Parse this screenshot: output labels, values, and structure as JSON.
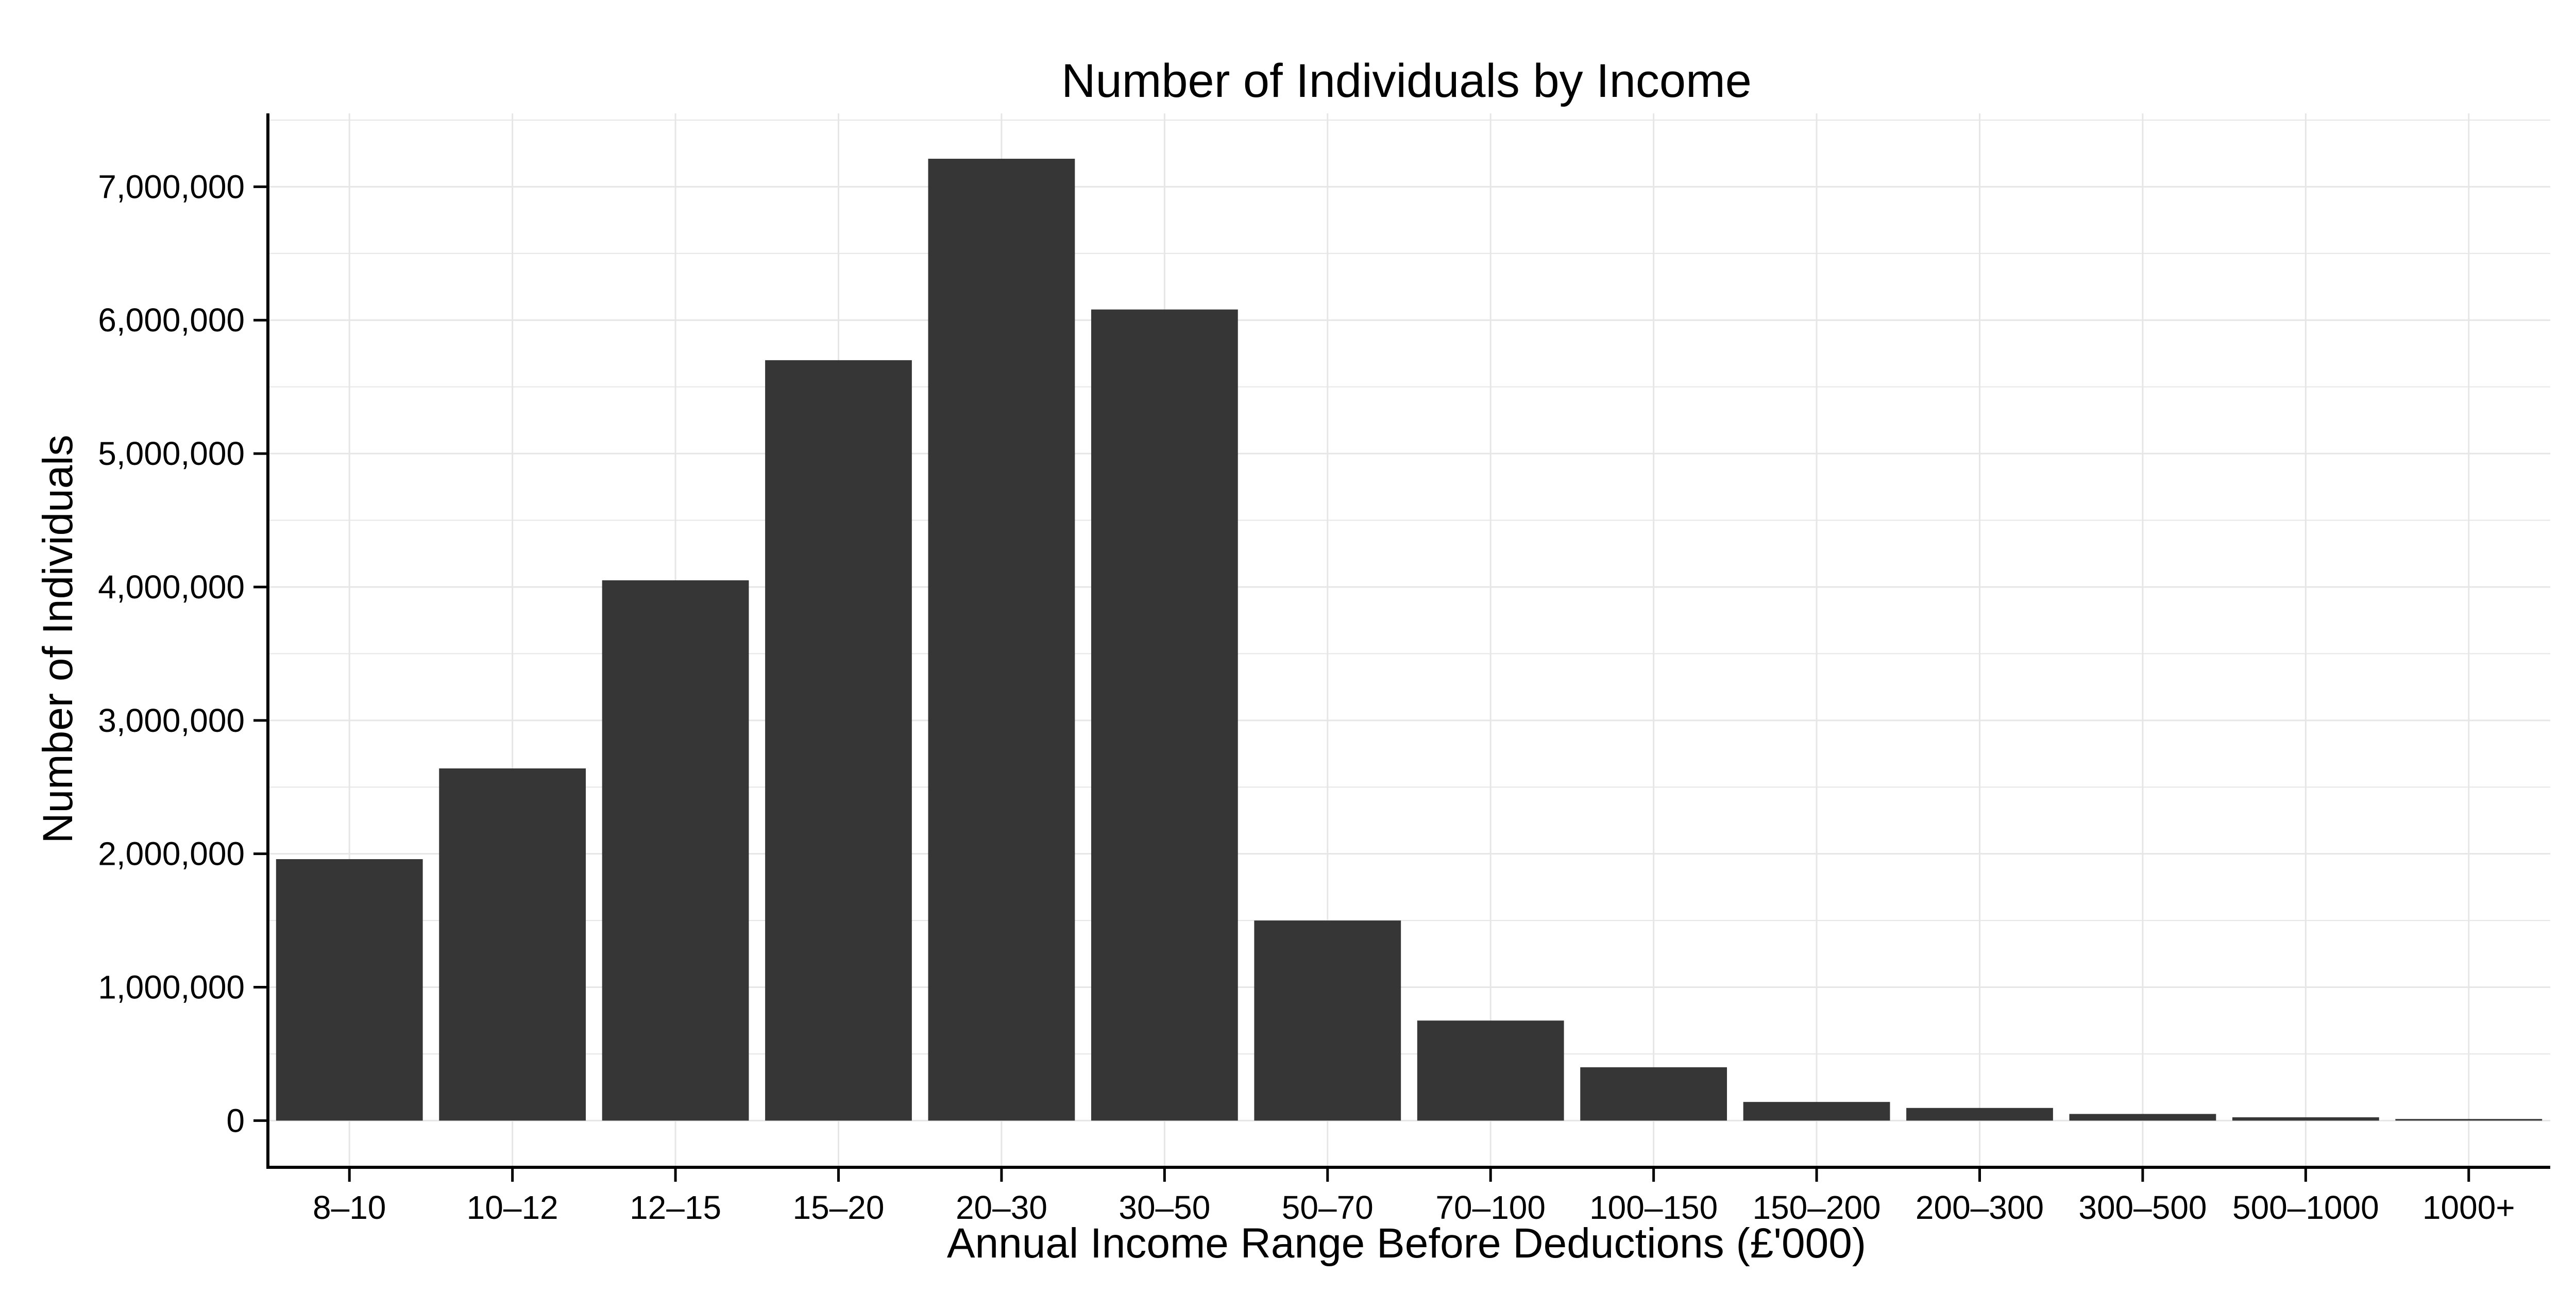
{
  "chart_data": {
    "type": "bar",
    "title": "Number of Individuals by Income",
    "xlabel": "Annual Income Range Before Deductions (£'000)",
    "ylabel": "Number of Individuals",
    "categories": [
      "8–10",
      "10–12",
      "12–15",
      "15–20",
      "20–30",
      "30–50",
      "50–70",
      "70–100",
      "100–150",
      "150–200",
      "200–300",
      "300–500",
      "500–1000",
      "1000+"
    ],
    "values": [
      1960000,
      2640000,
      4050000,
      5700000,
      7210000,
      6080000,
      1500000,
      750000,
      400000,
      140000,
      95000,
      50000,
      25000,
      12000
    ],
    "ylim": [
      -350000,
      7550000
    ],
    "yticks": [
      0,
      1000000,
      2000000,
      3000000,
      4000000,
      5000000,
      6000000,
      7000000
    ],
    "ytick_labels": [
      "0",
      "1,000,000",
      "2,000,000",
      "3,000,000",
      "4,000,000",
      "5,000,000",
      "6,000,000",
      "7,000,000"
    ],
    "grid": true,
    "legend": "none",
    "colors": {
      "bar": "#363636",
      "grid": "#e6e6e6",
      "axis": "#000000",
      "background": "#ffffff"
    }
  }
}
